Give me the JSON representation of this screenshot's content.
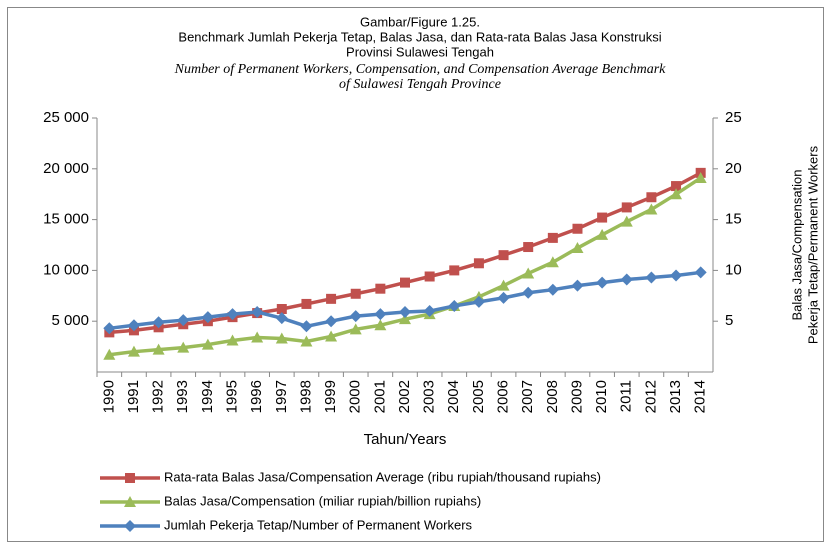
{
  "chart_data": {
    "type": "line",
    "title": [
      "Gambar/Figure 1.25.",
      "Benchmark Jumlah Pekerja Tetap, Balas Jasa, dan Rata-rata Balas Jasa Konstruksi",
      "Provinsi Sulawesi Tengah"
    ],
    "subtitle": [
      "Number of Permanent Workers, Compensation, and Compensation Average Benchmark",
      "of Sulawesi Tengah Province"
    ],
    "x_label": "Tahun/Years",
    "y2_label": [
      "Balas Jasa/Compensation",
      "Pekerja Tetap/Permanent Workers"
    ],
    "categories": [
      "1990",
      "1991",
      "1992",
      "1993",
      "1994",
      "1995",
      "1996",
      "1997",
      "1998",
      "1999",
      "2000",
      "2001",
      "2002",
      "2003",
      "2004",
      "2005",
      "2006",
      "2007",
      "2008",
      "2009",
      "2010",
      "2011",
      "2012",
      "2013",
      "2014"
    ],
    "ylim": [
      0,
      25000
    ],
    "yticks": [
      {
        "value": 5000,
        "label": "5 000"
      },
      {
        "value": 10000,
        "label": "10 000"
      },
      {
        "value": 15000,
        "label": "15 000"
      },
      {
        "value": 20000,
        "label": "20 000"
      },
      {
        "value": 25000,
        "label": "25 000"
      }
    ],
    "y2lim": [
      0,
      25
    ],
    "y2ticks": [
      5,
      10,
      15,
      20,
      25
    ],
    "series": [
      {
        "name": "Rata-rata Balas Jasa/Compensation Average (ribu rupiah/thousand rupiahs)",
        "color": "#c0504d",
        "marker": "square",
        "values": [
          3900,
          4100,
          4400,
          4700,
          5000,
          5400,
          5800,
          6200,
          6700,
          7200,
          7700,
          8200,
          8800,
          9400,
          10000,
          10700,
          11500,
          12300,
          13200,
          14100,
          15200,
          16200,
          17200,
          18300,
          19600
        ]
      },
      {
        "name": "Balas Jasa/Compensation (miliar rupiah/billion rupiahs)",
        "color": "#9bbb59",
        "marker": "triangle",
        "axis": "y2",
        "values": [
          1.7,
          2.0,
          2.2,
          2.4,
          2.7,
          3.1,
          3.4,
          3.3,
          3.0,
          3.5,
          4.2,
          4.6,
          5.2,
          5.7,
          6.5,
          7.4,
          8.5,
          9.7,
          10.8,
          12.2,
          13.5,
          14.8,
          16.0,
          17.5,
          19.1
        ]
      },
      {
        "name": "Jumlah Pekerja Tetap/Number of Permanent Workers",
        "color": "#4f81bd",
        "marker": "diamond",
        "values": [
          4300,
          4600,
          4900,
          5100,
          5400,
          5700,
          5900,
          5300,
          4500,
          5000,
          5500,
          5700,
          5900,
          6000,
          6500,
          6900,
          7300,
          7800,
          8100,
          8500,
          8800,
          9100,
          9300,
          9500,
          9800
        ]
      }
    ]
  }
}
